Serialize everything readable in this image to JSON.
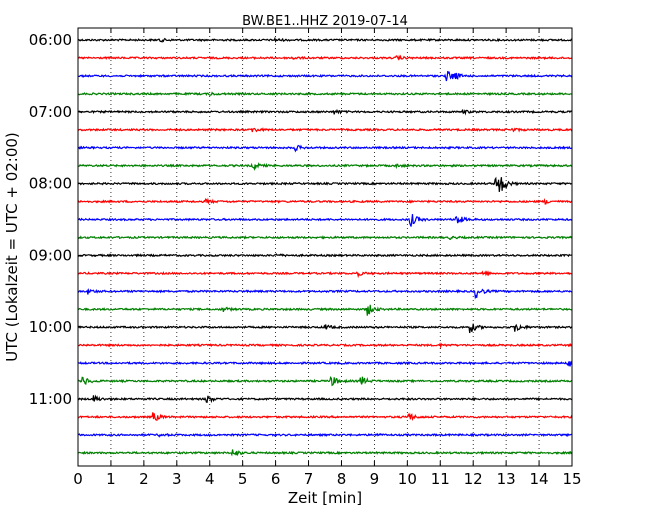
{
  "chart_data": {
    "type": "line",
    "title": "BW.BE1..HHZ 2019-07-14",
    "xlabel": "Zeit  [min]",
    "ylabel": "UTC (Lokalzeit = UTC + 02:00)",
    "xlim": [
      0,
      15
    ],
    "x_ticks": [
      "0",
      "1",
      "2",
      "3",
      "4",
      "5",
      "6",
      "7",
      "8",
      "9",
      "10",
      "11",
      "12",
      "13",
      "14",
      "15"
    ],
    "y_tick_labels": [
      "06:00",
      "07:00",
      "08:00",
      "09:00",
      "10:00",
      "11:00"
    ],
    "grid": "vertical dotted",
    "trace_colors": [
      "#000000",
      "#ff0000",
      "#0000ff",
      "#008000"
    ],
    "traces": [
      {
        "start": "06:00",
        "color": "#000000",
        "events": [
          [
            2.5,
            0.25
          ],
          [
            6.0,
            0.2
          ]
        ]
      },
      {
        "start": "06:15",
        "color": "#ff0000",
        "events": [
          [
            6.5,
            0.2
          ],
          [
            9.7,
            0.25
          ]
        ]
      },
      {
        "start": "06:30",
        "color": "#0000ff",
        "events": [
          [
            11.2,
            0.9
          ],
          [
            11.4,
            0.6
          ]
        ]
      },
      {
        "start": "06:45",
        "color": "#008000",
        "events": [
          [
            4.0,
            0.2
          ]
        ]
      },
      {
        "start": "07:00",
        "color": "#000000",
        "events": [
          [
            7.8,
            0.35
          ],
          [
            11.7,
            0.25
          ]
        ]
      },
      {
        "start": "07:15",
        "color": "#ff0000",
        "events": [
          [
            5.3,
            0.4
          ],
          [
            13.2,
            0.25
          ]
        ]
      },
      {
        "start": "07:30",
        "color": "#0000ff",
        "events": [
          [
            6.6,
            0.45
          ]
        ]
      },
      {
        "start": "07:45",
        "color": "#008000",
        "events": [
          [
            5.3,
            0.7
          ],
          [
            9.7,
            0.2
          ]
        ]
      },
      {
        "start": "08:00",
        "color": "#000000",
        "events": [
          [
            12.8,
            1.6
          ],
          [
            12.7,
            0.9
          ]
        ]
      },
      {
        "start": "08:15",
        "color": "#ff0000",
        "events": [
          [
            3.9,
            0.3
          ],
          [
            14.2,
            0.3
          ]
        ]
      },
      {
        "start": "08:30",
        "color": "#0000ff",
        "events": [
          [
            10.1,
            1.2
          ],
          [
            11.5,
            0.9
          ]
        ]
      },
      {
        "start": "08:45",
        "color": "#008000",
        "events": [
          [
            11.3,
            0.2
          ]
        ]
      },
      {
        "start": "09:00",
        "color": "#000000",
        "events": [
          [
            6.0,
            0.2
          ]
        ]
      },
      {
        "start": "09:15",
        "color": "#ff0000",
        "events": [
          [
            8.5,
            0.35
          ],
          [
            12.3,
            0.25
          ]
        ]
      },
      {
        "start": "09:30",
        "color": "#0000ff",
        "events": [
          [
            0.3,
            0.4
          ],
          [
            12.1,
            1.0
          ]
        ]
      },
      {
        "start": "09:45",
        "color": "#008000",
        "events": [
          [
            4.4,
            0.4
          ],
          [
            8.8,
            1.0
          ]
        ]
      },
      {
        "start": "10:00",
        "color": "#000000",
        "events": [
          [
            7.5,
            0.45
          ],
          [
            11.9,
            1.0
          ],
          [
            13.3,
            0.7
          ]
        ]
      },
      {
        "start": "10:15",
        "color": "#ff0000",
        "events": [
          [
            11.0,
            0.15
          ]
        ]
      },
      {
        "start": "10:30",
        "color": "#0000ff",
        "events": [
          [
            14.9,
            0.6
          ]
        ]
      },
      {
        "start": "10:45",
        "color": "#008000",
        "events": [
          [
            0.15,
            0.8
          ],
          [
            7.7,
            0.9
          ],
          [
            8.6,
            0.8
          ]
        ]
      },
      {
        "start": "11:00",
        "color": "#000000",
        "events": [
          [
            0.5,
            0.5
          ],
          [
            3.9,
            0.7
          ]
        ]
      },
      {
        "start": "11:15",
        "color": "#ff0000",
        "events": [
          [
            2.3,
            0.8
          ],
          [
            10.0,
            0.9
          ]
        ]
      },
      {
        "start": "11:30",
        "color": "#0000ff",
        "events": [
          [
            2.5,
            0.2
          ],
          [
            9.0,
            0.2
          ]
        ]
      },
      {
        "start": "11:45",
        "color": "#008000",
        "events": [
          [
            4.7,
            0.7
          ]
        ]
      }
    ]
  }
}
